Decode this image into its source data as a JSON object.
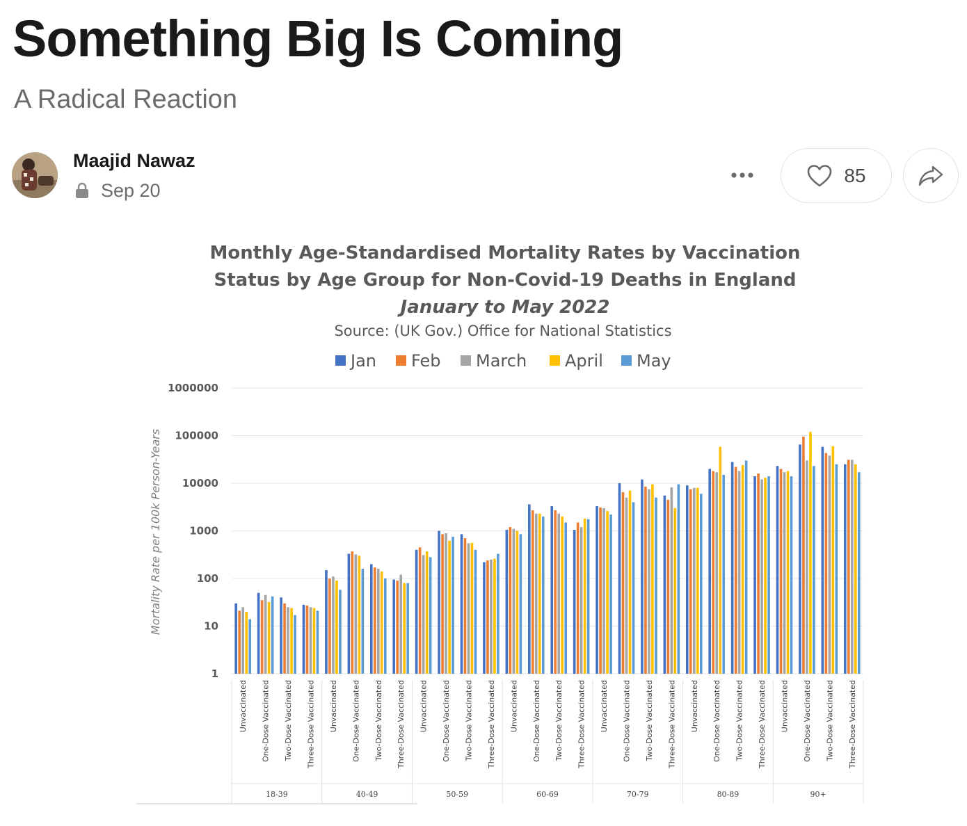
{
  "post": {
    "title": "Something Big Is Coming",
    "subtitle": "A Radical Reaction"
  },
  "author": {
    "name": "Maajid Nawaz",
    "date": "Sep 20"
  },
  "actions": {
    "like_count": "85"
  },
  "icons": {
    "more": "more-horizontal-icon",
    "like": "heart-icon",
    "share": "share-arrow-icon",
    "lock": "lock-icon"
  },
  "chart_data": {
    "type": "bar",
    "title_lines": [
      "Monthly Age-Standardised Mortality Rates by Vaccination",
      "Status by Age Group for Non-Covid-19 Deaths in England"
    ],
    "subtitle": "January to May 2022",
    "source": "Source: (UK Gov.) Office for National Statistics",
    "ylabel": "Mortality Rate per 100k Person-Years",
    "yscale": "log",
    "ylim": [
      1,
      1000000
    ],
    "yticks": [
      "1",
      "10",
      "100",
      "1000",
      "10000",
      "100000",
      "1000000"
    ],
    "legend_position": "top",
    "grid": true,
    "age_groups": [
      "18-39",
      "40-49",
      "50-59",
      "60-69",
      "70-79",
      "80-89",
      "90+"
    ],
    "statuses": [
      "Unvaccinated",
      "One-Dose Vaccinated",
      "Two-Dose Vaccinated",
      "Three-Dose Vaccinated"
    ],
    "series": [
      {
        "name": "Jan",
        "color": "#4472C4",
        "values": [
          30,
          50,
          40,
          28,
          150,
          330,
          200,
          95,
          400,
          1000,
          850,
          220,
          1050,
          3600,
          3300,
          1050,
          3300,
          10000,
          12000,
          5500,
          9000,
          20000,
          28000,
          14000,
          23000,
          65000,
          58000,
          25000
        ]
      },
      {
        "name": "Feb",
        "color": "#ED7D31",
        "values": [
          21,
          35,
          30,
          27,
          100,
          370,
          170,
          90,
          450,
          850,
          700,
          240,
          1200,
          2700,
          2700,
          1500,
          3100,
          6500,
          8500,
          4500,
          7500,
          18000,
          22000,
          16000,
          20000,
          95000,
          43000,
          31000
        ]
      },
      {
        "name": "March",
        "color": "#A5A5A5",
        "values": [
          25,
          45,
          25,
          25,
          110,
          320,
          160,
          120,
          310,
          890,
          550,
          250,
          1100,
          2300,
          2300,
          1200,
          3000,
          5000,
          7500,
          8200,
          8000,
          17000,
          18000,
          12000,
          17000,
          30000,
          38000,
          31000
        ]
      },
      {
        "name": "April",
        "color": "#FFC000",
        "values": [
          20,
          32,
          24,
          24,
          90,
          300,
          140,
          80,
          370,
          620,
          560,
          260,
          1000,
          2300,
          2000,
          1800,
          2600,
          7000,
          9500,
          3000,
          8000,
          58000,
          24000,
          13000,
          18000,
          120000,
          60000,
          25000
        ]
      },
      {
        "name": "May",
        "color": "#5B9BD5",
        "values": [
          14,
          42,
          17,
          21,
          58,
          160,
          100,
          80,
          280,
          750,
          400,
          330,
          850,
          2000,
          1500,
          1750,
          2200,
          4000,
          5000,
          9500,
          6000,
          15000,
          30000,
          14000,
          14000,
          23000,
          25000,
          17000
        ]
      }
    ]
  }
}
